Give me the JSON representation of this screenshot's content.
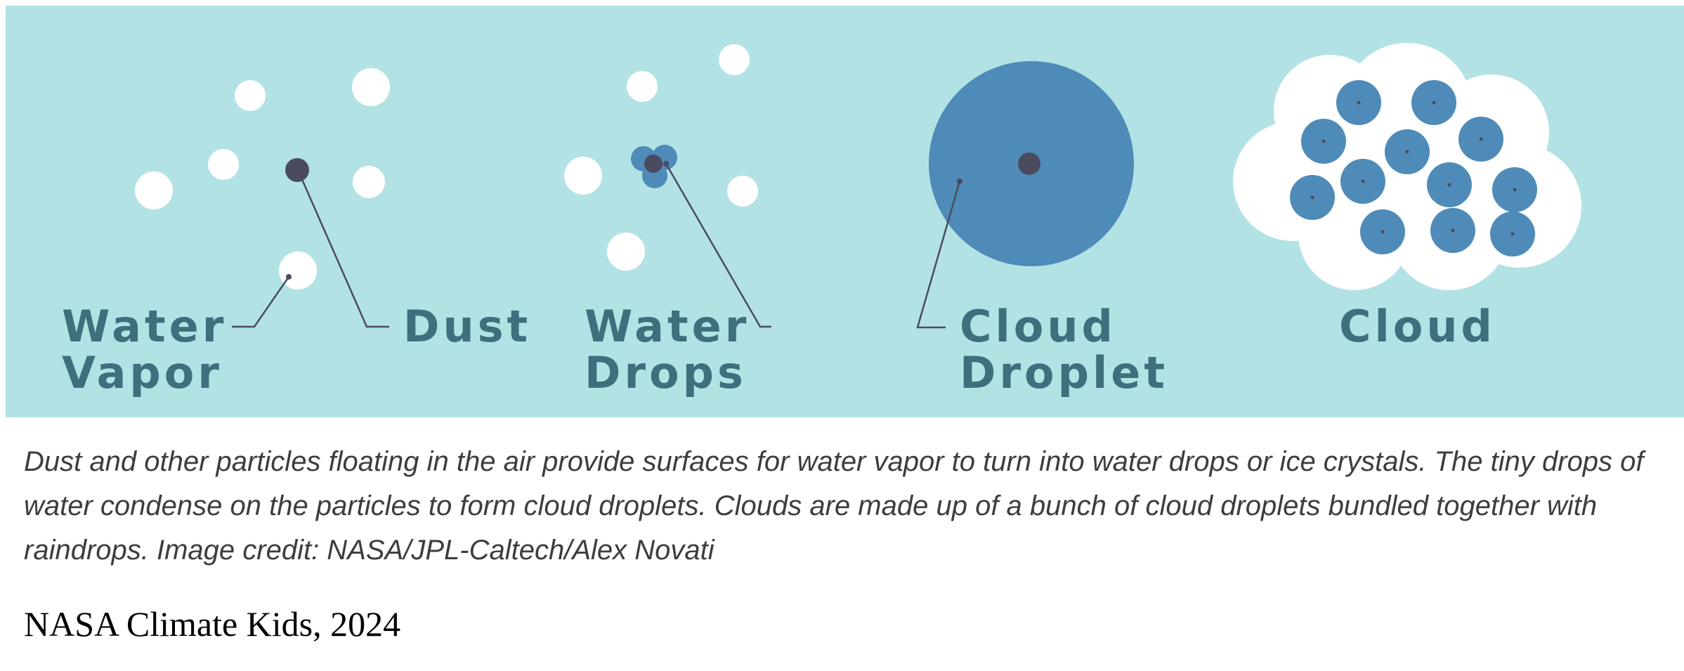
{
  "diagram": {
    "background_color": "#b3e2e5",
    "vapor_color": "#ffffff",
    "dust_color": "#4a4b5e",
    "droplet_color": "#4f8bb8",
    "label_color": "#3f6f7c",
    "labels": {
      "water_vapor": [
        "Water",
        "Vapor"
      ],
      "dust": "Dust",
      "water_drops": [
        "Water",
        "Drops"
      ],
      "cloud_droplet": [
        "Cloud",
        "Droplet"
      ],
      "cloud": "Cloud"
    }
  },
  "caption": "Dust and other particles floating in the air provide surfaces for water vapor to turn into water drops or ice crystals. The tiny drops of water condense on the particles to form cloud droplets. Clouds are made up of a bunch of cloud droplets bundled together with raindrops. Image credit: NASA/JPL-Caltech/Alex Novati",
  "credit": "NASA Climate Kids, 2024"
}
